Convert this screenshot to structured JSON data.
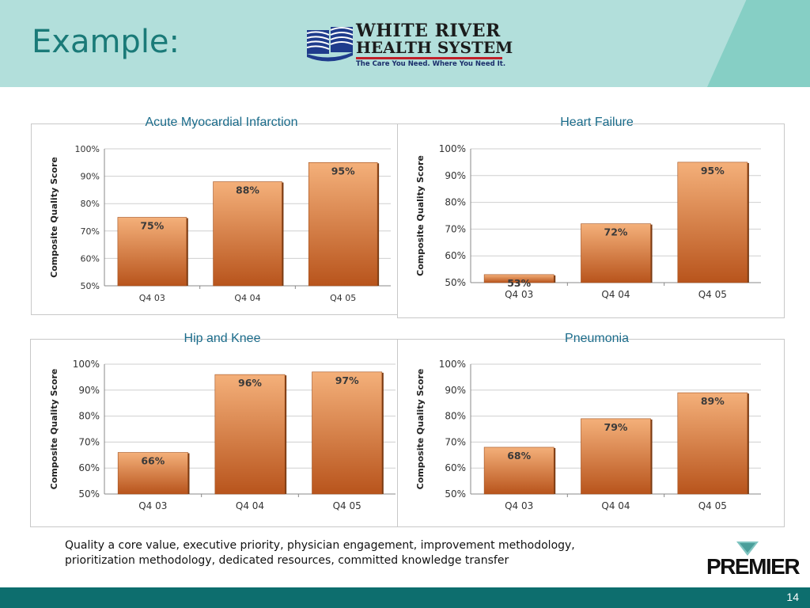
{
  "slide": {
    "title": "Example:",
    "footnote_line1": "Quality a core value, executive priority, physician engagement, improvement methodology,",
    "footnote_line2": "prioritization methodology, dedicated resources, committed knowledge transfer",
    "page_number": "14"
  },
  "logo": {
    "line1": "WHITE RIVER",
    "line2": "HEALTH SYSTEM",
    "tagline": "The Care You Need. Where You Need It."
  },
  "partner_logo": {
    "text": "PREMIER"
  },
  "colors": {
    "header": "#b2dfdb",
    "header_accent": "#86cfc5",
    "title": "#1a7a78",
    "chart_title": "#1a6b8a",
    "bar_top": "#f4b07a",
    "bar_bottom": "#b8541c",
    "footer": "#0d6e6e"
  },
  "chart_data": [
    {
      "type": "bar",
      "title": "Acute Myocardial Infarction",
      "ylabel": "Composite Quality Score",
      "categories": [
        "Q4 03",
        "Q4 04",
        "Q4 05"
      ],
      "values": [
        75,
        88,
        95
      ],
      "value_labels": [
        "75%",
        "88%",
        "95%"
      ],
      "ylim": [
        50,
        100
      ],
      "yticks": [
        "50%",
        "60%",
        "70%",
        "80%",
        "90%",
        "100%"
      ],
      "grid": true
    },
    {
      "type": "bar",
      "title": "Heart Failure",
      "ylabel": "Composite Quality Score",
      "categories": [
        "Q4 03",
        "Q4 04",
        "Q4 05"
      ],
      "values": [
        53,
        72,
        95
      ],
      "value_labels": [
        "53%",
        "72%",
        "95%"
      ],
      "ylim": [
        50,
        100
      ],
      "yticks": [
        "50%",
        "60%",
        "70%",
        "80%",
        "90%",
        "100%"
      ],
      "grid": true
    },
    {
      "type": "bar",
      "title": "Hip and Knee",
      "ylabel": "Composite Quality Score",
      "categories": [
        "Q4 03",
        "Q4 04",
        "Q4 05"
      ],
      "values": [
        66,
        96,
        97
      ],
      "value_labels": [
        "66%",
        "96%",
        "97%"
      ],
      "ylim": [
        50,
        100
      ],
      "yticks": [
        "50%",
        "60%",
        "70%",
        "80%",
        "90%",
        "100%"
      ],
      "grid": true
    },
    {
      "type": "bar",
      "title": "Pneumonia",
      "ylabel": "Composite Quality Score",
      "categories": [
        "Q4 03",
        "Q4 04",
        "Q4 05"
      ],
      "values": [
        68,
        79,
        89
      ],
      "value_labels": [
        "68%",
        "79%",
        "89%"
      ],
      "ylim": [
        50,
        100
      ],
      "yticks": [
        "50%",
        "60%",
        "70%",
        "80%",
        "90%",
        "100%"
      ],
      "grid": true
    }
  ]
}
